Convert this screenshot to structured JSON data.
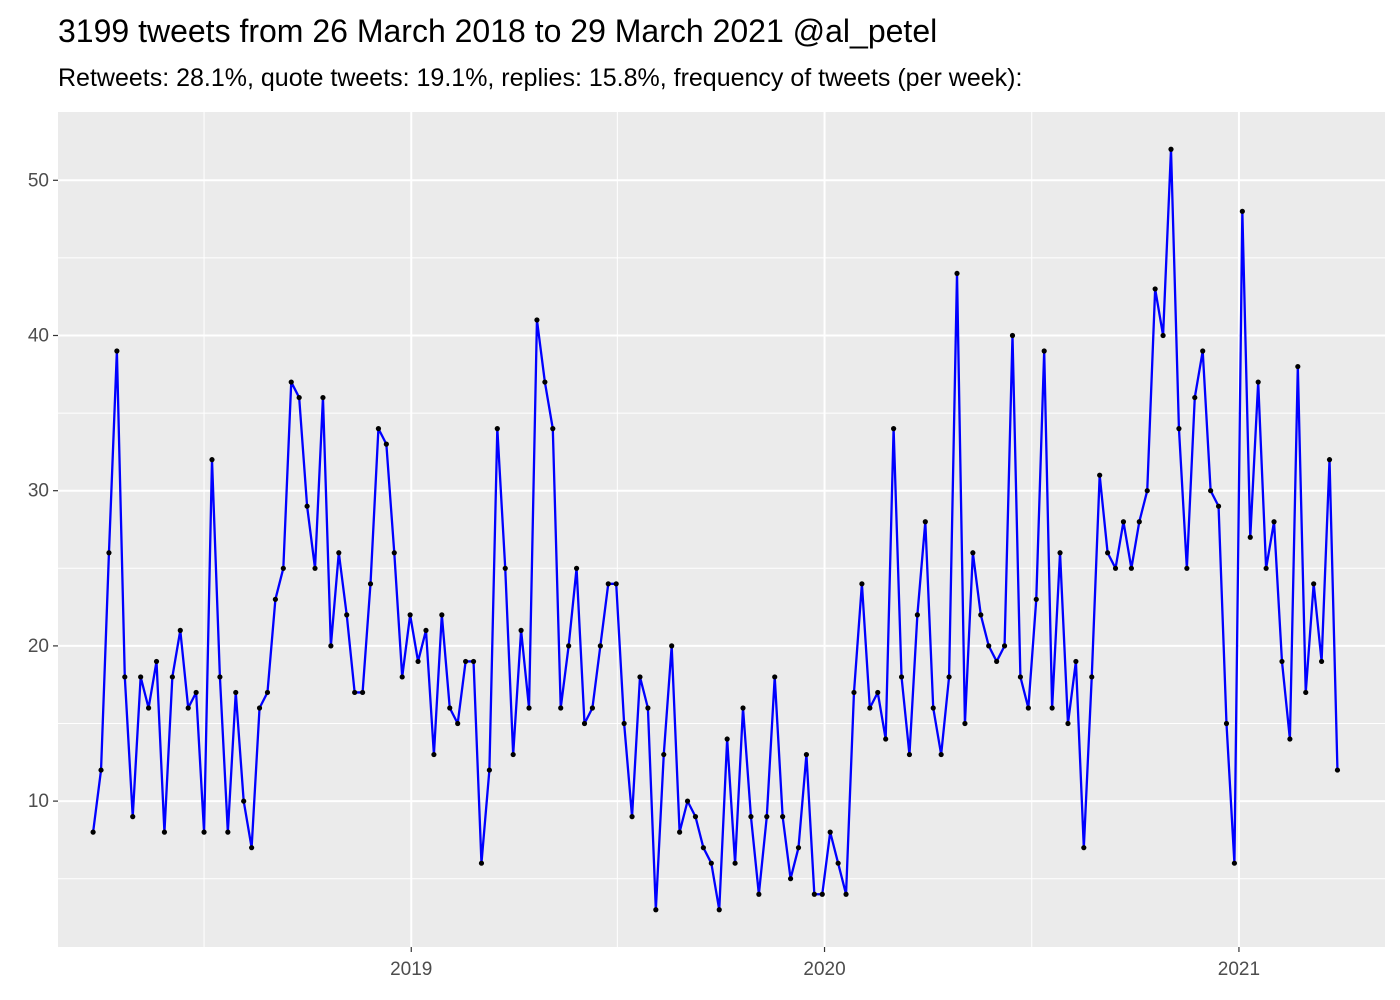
{
  "chart_data": {
    "type": "line",
    "title": "3199 tweets from 26 March 2018 to 29 March 2021 @al_petel",
    "subtitle": "Retweets: 28.1%, quote tweets: 19.1%, replies: 15.8%, frequency of tweets (per week):",
    "xlabel": "",
    "ylabel": "",
    "x_start": "2018-03-26",
    "x_interval": "week",
    "xlim": [
      "2018-02-23",
      "2021-05-10"
    ],
    "ylim": [
      0.6,
      54.4
    ],
    "x_ticks": [
      {
        "date": "2019-01-01",
        "label": "2019"
      },
      {
        "date": "2020-01-01",
        "label": "2020"
      },
      {
        "date": "2021-01-01",
        "label": "2021"
      }
    ],
    "x_minor_ticks": [
      "2018-07-02",
      "2019-07-02",
      "2020-07-02"
    ],
    "y_ticks": [
      10,
      20,
      30,
      40,
      50
    ],
    "y_minor_ticks": [
      5,
      15,
      25,
      35,
      45
    ],
    "grid": true,
    "legend": "none",
    "series": [
      {
        "values": [
          8,
          12,
          26,
          39,
          18,
          9,
          18,
          16,
          19,
          8,
          18,
          21,
          16,
          17,
          8,
          32,
          18,
          8,
          17,
          10,
          7,
          16,
          17,
          23,
          25,
          37,
          36,
          29,
          25,
          36,
          20,
          26,
          22,
          17,
          17,
          24,
          34,
          33,
          26,
          18,
          22,
          19,
          21,
          13,
          22,
          16,
          15,
          19,
          19,
          6,
          12,
          34,
          25,
          13,
          21,
          16,
          41,
          37,
          34,
          16,
          20,
          25,
          15,
          16,
          20,
          24,
          24,
          15,
          9,
          18,
          16,
          3,
          13,
          20,
          8,
          10,
          9,
          7,
          6,
          3,
          14,
          6,
          16,
          9,
          4,
          9,
          18,
          9,
          5,
          7,
          13,
          4,
          4,
          8,
          6,
          4,
          17,
          24,
          16,
          17,
          14,
          34,
          18,
          13,
          22,
          28,
          16,
          13,
          18,
          44,
          15,
          26,
          22,
          20,
          19,
          20,
          40,
          18,
          16,
          23,
          39,
          16,
          26,
          15,
          19,
          7,
          18,
          31,
          26,
          25,
          28,
          25,
          28,
          30,
          43,
          40,
          52,
          34,
          25,
          36,
          39,
          30,
          29,
          15,
          6,
          48,
          27,
          37,
          25,
          28,
          19,
          14,
          38,
          17,
          24,
          19,
          32,
          12
        ]
      }
    ]
  },
  "colors": {
    "panel_background": "#ebebeb",
    "grid": "#ffffff",
    "line": "#0000ff",
    "points": "#000000",
    "tick_label": "#4d4d4d",
    "tick_mark": "#333333"
  }
}
